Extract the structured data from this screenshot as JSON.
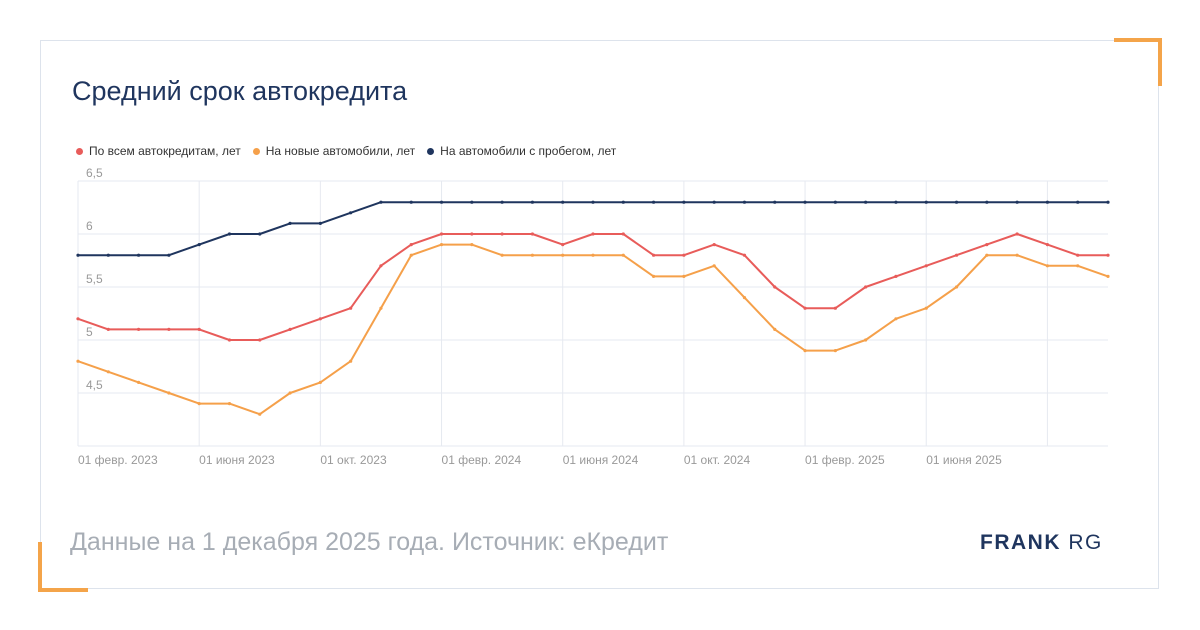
{
  "chart_data": {
    "type": "line",
    "title": "Средний срок автокредита",
    "subtitle": "",
    "xlabel": "",
    "ylabel": "",
    "ylim": [
      4,
      6.5
    ],
    "yticks": [
      "6,5",
      "6",
      "5,5",
      "5",
      "4,5"
    ],
    "ytick_values": [
      6.5,
      6,
      5.5,
      5,
      4.5
    ],
    "xtick_labels": [
      "01 февр. 2023",
      "01 июня 2023",
      "01 окт. 2023",
      "01 февр. 2024",
      "01 июня 2024",
      "01 окт. 2024",
      "01 февр. 2025",
      "01 июня 2025"
    ],
    "xtick_months": [
      0,
      4,
      8,
      12,
      16,
      20,
      24,
      28
    ],
    "x_month_range": [
      0,
      34
    ],
    "x_start": "2023-02-01",
    "grid": true,
    "legend": "top-left",
    "series": [
      {
        "name": "По всем автокредитам, лет",
        "color": "#e85c5a",
        "x": [
          0,
          1,
          2,
          3,
          4,
          5,
          6,
          7,
          8,
          9,
          10,
          11,
          12,
          13,
          14,
          15,
          16,
          17,
          18,
          19,
          20,
          21,
          22,
          23,
          24,
          25,
          26,
          27,
          28,
          29,
          30,
          31,
          32,
          33,
          34
        ],
        "values": [
          5.2,
          5.1,
          5.1,
          5.1,
          5.1,
          5.0,
          5.0,
          5.1,
          5.2,
          5.3,
          5.7,
          5.9,
          6.0,
          6.0,
          6.0,
          6.0,
          5.9,
          6.0,
          6.0,
          5.8,
          5.8,
          5.9,
          5.8,
          5.5,
          5.3,
          5.3,
          5.5,
          5.6,
          5.7,
          5.8,
          5.9,
          6.0,
          5.9,
          5.8,
          5.8
        ]
      },
      {
        "name": "На новые автомобили, лет",
        "color": "#f5a04a",
        "x": [
          0,
          1,
          2,
          3,
          4,
          5,
          6,
          7,
          8,
          9,
          10,
          11,
          12,
          13,
          14,
          15,
          16,
          17,
          18,
          19,
          20,
          21,
          22,
          23,
          24,
          25,
          26,
          27,
          28,
          29,
          30,
          31,
          32,
          33,
          34
        ],
        "values": [
          4.8,
          4.7,
          4.6,
          4.5,
          4.4,
          4.4,
          4.3,
          4.5,
          4.6,
          4.8,
          5.3,
          5.8,
          5.9,
          5.9,
          5.8,
          5.8,
          5.8,
          5.8,
          5.8,
          5.6,
          5.6,
          5.7,
          5.4,
          5.1,
          4.9,
          4.9,
          5.0,
          5.2,
          5.3,
          5.5,
          5.8,
          5.8,
          5.7,
          5.7,
          5.6
        ]
      },
      {
        "name": "На автомобили с пробегом, лет",
        "color": "#1f355e",
        "x": [
          0,
          1,
          2,
          3,
          4,
          5,
          6,
          7,
          8,
          9,
          10,
          11,
          12,
          13,
          14,
          15,
          16,
          17,
          18,
          19,
          20,
          21,
          22,
          23,
          24,
          25,
          26,
          27,
          28,
          29,
          30,
          31,
          32,
          33,
          34
        ],
        "values": [
          5.8,
          5.8,
          5.8,
          5.8,
          5.9,
          6.0,
          6.0,
          6.1,
          6.1,
          6.2,
          6.3,
          6.3,
          6.3,
          6.3,
          6.3,
          6.3,
          6.3,
          6.3,
          6.3,
          6.3,
          6.3,
          6.3,
          6.3,
          6.3,
          6.3,
          6.3,
          6.3,
          6.3,
          6.3,
          6.3,
          6.3,
          6.3,
          6.3,
          6.3,
          6.3
        ]
      }
    ]
  },
  "footer": {
    "source_text": "Данные на 1 декабря 2025 года. Источник: еКредит"
  },
  "logo": {
    "bold": "FRANK",
    "light": "RG"
  }
}
